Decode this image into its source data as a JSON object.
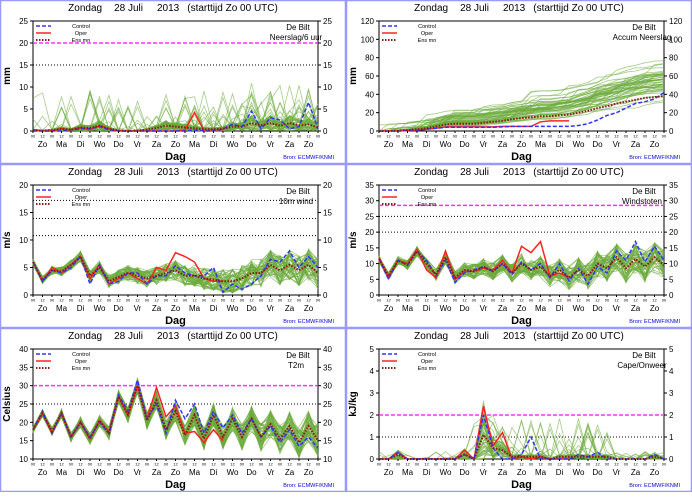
{
  "common": {
    "title_day": "Zondag",
    "title_date": "28 Juli",
    "title_year": "2013",
    "title_start": "(starttijd  Zo 00 UTC)",
    "location": "De Bilt",
    "xlabel": "Dag",
    "source": "Bron: ECMWF/KNMI",
    "legend": {
      "control": "Control",
      "oper": "Oper",
      "ensmean": "Ens mn"
    },
    "day_labels": [
      "Zo",
      "Ma",
      "Di",
      "Wo",
      "Do",
      "Vr",
      "Za",
      "Zo",
      "Ma",
      "Di",
      "Wo",
      "Do",
      "Vr",
      "Za",
      "Zo"
    ],
    "hour_labels": [
      "00",
      "12"
    ],
    "colors": {
      "control": "#3333ff",
      "oper": "#ff2222",
      "ensmean": "#8b1a1a",
      "members": "#6aaa3a",
      "threshold_high": "#ff33ff",
      "threshold": "#000000",
      "source": "#0000dd",
      "border": "#9999ff"
    }
  },
  "chart_data": [
    {
      "type": "line",
      "variable": "Neerslag/6 uur",
      "ylabel": "mm",
      "ylim": [
        0,
        25
      ],
      "yticks": [
        0,
        5,
        10,
        15,
        20,
        25
      ],
      "x_unit": "days from start, 12-hourly",
      "thresholds_magenta": [
        20
      ],
      "thresholds_dotted": [
        15
      ],
      "series": [
        {
          "name": "Control",
          "values": [
            0,
            0,
            0,
            0,
            0.3,
            0.5,
            0.5,
            1,
            0.3,
            0,
            0,
            0,
            0,
            0,
            0,
            0,
            0,
            0.2,
            0,
            0,
            0.5,
            1.5,
            1,
            4.5,
            0.5,
            3,
            2.5,
            0.5,
            1,
            6.5,
            0.5
          ]
        },
        {
          "name": "Oper",
          "values": [
            0.3,
            0,
            0,
            0.5,
            0.2,
            0.8,
            0.3,
            1.2,
            0.5,
            0,
            0,
            0,
            0,
            0,
            0,
            0,
            0.2,
            4.2,
            0.1,
            0.3,
            0.3
          ]
        },
        {
          "name": "Ens mn",
          "values": [
            0.2,
            0.1,
            0.2,
            0.5,
            0.3,
            0.8,
            0.7,
            1.2,
            0.5,
            0.1,
            0,
            0.1,
            0.3,
            0.7,
            1.2,
            1,
            0.8,
            0.6,
            0.4,
            0.4,
            0.5,
            1,
            1,
            1.8,
            1.3,
            1.8,
            1.2,
            1.8,
            1.3,
            1.5,
            0.8
          ]
        }
      ]
    },
    {
      "type": "line",
      "variable": "Accum Neerslag",
      "ylabel": "mm",
      "ylim": [
        0,
        120
      ],
      "yticks": [
        0,
        20,
        40,
        60,
        80,
        100,
        120
      ],
      "x_unit": "days from start, 12-hourly",
      "thresholds_magenta": [],
      "thresholds_dotted": [],
      "series": [
        {
          "name": "Control",
          "values": [
            0,
            0,
            0,
            0.5,
            1,
            2,
            3,
            4,
            4,
            4,
            4,
            4,
            4,
            4.5,
            5,
            5,
            5,
            5,
            5,
            5,
            5,
            6,
            8,
            12,
            17,
            20,
            25,
            30,
            32,
            35,
            42
          ]
        },
        {
          "name": "Oper",
          "values": [
            0,
            0,
            0,
            0.5,
            1,
            2,
            3,
            4.5,
            4.5,
            4.5,
            4.5,
            4.5,
            4.5,
            5,
            5,
            5,
            5,
            10,
            11,
            11,
            11
          ]
        },
        {
          "name": "Ens mn",
          "values": [
            0,
            0,
            0.5,
            1,
            2,
            3,
            5,
            7,
            8,
            8,
            8,
            9,
            10,
            11,
            13,
            14,
            15,
            16,
            16,
            17,
            18,
            20,
            22,
            25,
            27,
            30,
            32,
            34,
            36,
            37,
            38
          ]
        }
      ]
    },
    {
      "type": "line",
      "variable": "10m wind",
      "ylabel": "m/s",
      "ylim": [
        0,
        20
      ],
      "yticks": [
        0,
        5,
        10,
        15,
        20
      ],
      "x_unit": "days from start, 12-hourly",
      "thresholds_magenta": [],
      "thresholds_dotted": [
        10.8,
        13.9,
        17.2
      ],
      "series": [
        {
          "name": "Control",
          "values": [
            6,
            2.5,
            4.5,
            4,
            5,
            7,
            2,
            5.5,
            2,
            2.5,
            4,
            4,
            2,
            3.5,
            3.5,
            5.3,
            4,
            3.5,
            3.5,
            5,
            0.5,
            2,
            1,
            2,
            3.5,
            6.5,
            6,
            8,
            5,
            7,
            5
          ]
        },
        {
          "name": "Oper",
          "values": [
            6,
            2.5,
            5,
            4,
            5.5,
            7,
            3,
            5.5,
            2,
            3,
            4,
            3,
            2,
            5,
            4.5,
            7.7,
            7,
            6,
            3,
            2.5,
            2.5
          ]
        },
        {
          "name": "Ens mn",
          "values": [
            6,
            2.7,
            4.5,
            4.3,
            5.5,
            7,
            3.5,
            5,
            2.5,
            3.3,
            4,
            3.5,
            3,
            3.5,
            4,
            4.5,
            3.5,
            3.5,
            3,
            2.8,
            2.5,
            2.5,
            3,
            4,
            4,
            5.5,
            4.5,
            5.5,
            4.5,
            5.5,
            4
          ]
        }
      ]
    },
    {
      "type": "line",
      "variable": "Windstoten",
      "ylabel": "m/s",
      "ylim": [
        0,
        35
      ],
      "yticks": [
        0,
        5,
        10,
        15,
        20,
        25,
        30,
        35
      ],
      "x_unit": "days from start, 12-hourly",
      "thresholds_magenta": [
        28.5
      ],
      "thresholds_dotted": [
        20,
        25
      ],
      "series": [
        {
          "name": "Control",
          "values": [
            11.5,
            5,
            11,
            9.5,
            14,
            11,
            6,
            11,
            4,
            7,
            8,
            9,
            7.5,
            10,
            6.5,
            10.5,
            8,
            10,
            5.5,
            10,
            4.5,
            8.5,
            3.5,
            9,
            7,
            14,
            11,
            17,
            10.5,
            15.5,
            11
          ]
        },
        {
          "name": "Oper",
          "values": [
            12,
            5.5,
            11,
            10,
            14.5,
            8,
            5.5,
            14,
            5,
            7.5,
            7.5,
            8.5,
            8,
            11,
            7,
            15.5,
            13.5,
            17,
            6,
            7,
            5.5
          ]
        },
        {
          "name": "Ens mn",
          "values": [
            11.5,
            6,
            11,
            9.5,
            14,
            10,
            6.5,
            12,
            5.5,
            8,
            7.5,
            9,
            7.5,
            10,
            7,
            10,
            8,
            9,
            6,
            8,
            5.5,
            8,
            6,
            10,
            8.5,
            12,
            8.5,
            11.5,
            9,
            12,
            9.5
          ]
        }
      ]
    },
    {
      "type": "line",
      "variable": "T2m",
      "ylabel": "Celsius",
      "ylim": [
        10,
        40
      ],
      "yticks": [
        10,
        15,
        20,
        25,
        30,
        35,
        40
      ],
      "x_unit": "days from start, 12-hourly",
      "thresholds_magenta": [
        30
      ],
      "thresholds_dotted": [
        25
      ],
      "series": [
        {
          "name": "Control",
          "values": [
            18,
            23,
            17,
            22.5,
            16,
            20,
            16,
            20,
            17,
            27.5,
            23,
            31.5,
            21,
            25,
            17,
            26,
            21,
            25,
            17,
            23,
            18.5,
            22,
            17,
            21,
            16,
            19,
            14.5,
            18,
            13.5,
            16,
            13
          ]
        },
        {
          "name": "Oper",
          "values": [
            18,
            22.5,
            17,
            22.5,
            16,
            20,
            15.5,
            20.5,
            17.5,
            27,
            22,
            30,
            21,
            29.5,
            21.5,
            24.5,
            17,
            17.5,
            14.5,
            18,
            15
          ]
        },
        {
          "name": "Ens mn",
          "values": [
            18,
            22.5,
            17.5,
            22.5,
            16,
            20,
            15.5,
            20.5,
            17,
            27,
            22,
            30,
            20.5,
            26,
            18,
            23,
            16.5,
            22,
            15.5,
            22,
            16,
            21,
            16,
            21,
            16,
            19.5,
            15.5,
            19,
            14.5,
            19,
            15
          ]
        }
      ]
    },
    {
      "type": "line",
      "variable": "Cape/Onweer",
      "ylabel": "kJ/kg",
      "ylim": [
        0,
        5
      ],
      "yticks": [
        0,
        1,
        2,
        3,
        4,
        5
      ],
      "x_unit": "days from start, 12-hourly",
      "thresholds_magenta": [
        2
      ],
      "thresholds_dotted": [
        1
      ],
      "series": [
        {
          "name": "Control",
          "values": [
            0,
            0,
            0.3,
            0,
            0,
            0,
            0,
            0,
            0,
            0.2,
            0,
            2,
            0.5,
            0,
            0,
            0.2,
            1,
            0,
            0,
            0,
            0,
            0.2,
            0.1,
            0.3,
            0,
            0,
            0,
            0,
            0,
            0.2,
            0
          ]
        },
        {
          "name": "Oper",
          "values": [
            0,
            0,
            0.3,
            0,
            0,
            0,
            0,
            0,
            0,
            0.4,
            0,
            2.4,
            0.6,
            1.2,
            0,
            0.1,
            0,
            0.1,
            0,
            0,
            0
          ]
        },
        {
          "name": "Ens mn",
          "values": [
            0,
            0,
            0.2,
            0,
            0,
            0,
            0,
            0,
            0,
            0.2,
            0,
            1.1,
            0.5,
            0.4,
            0.1,
            0.1,
            0.1,
            0.1,
            0,
            0.1,
            0.1,
            0.1,
            0.1,
            0.1,
            0.1,
            0,
            0,
            0,
            0,
            0.1,
            0
          ]
        }
      ]
    }
  ]
}
